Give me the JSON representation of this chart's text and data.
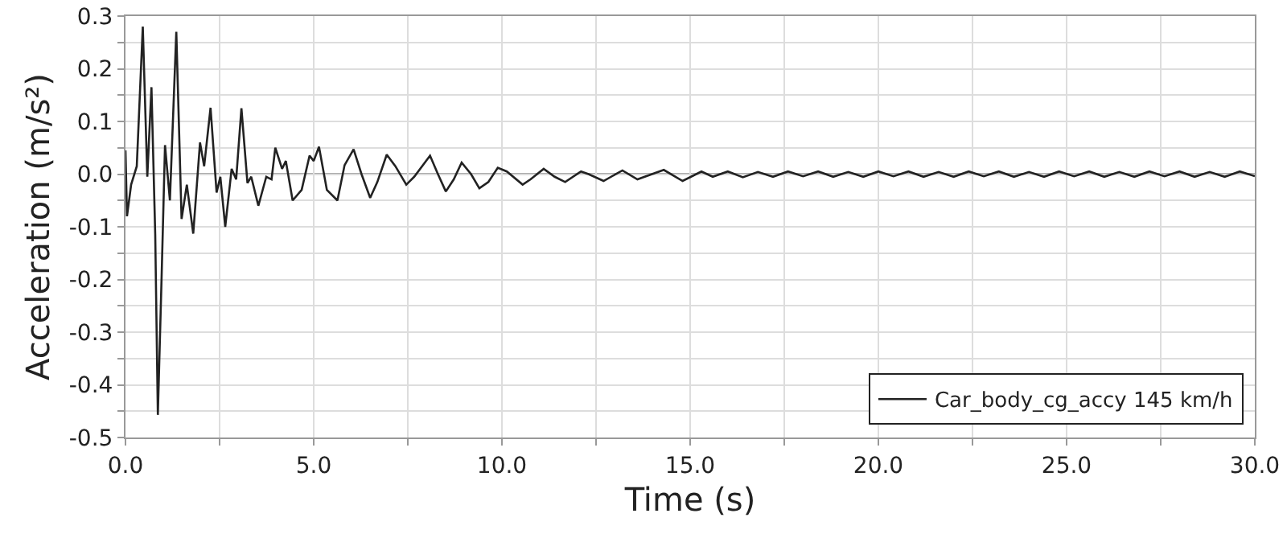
{
  "chart_data": {
    "type": "line",
    "xlabel": "Time (s)",
    "ylabel": "Acceleration (m/s²)",
    "xlim": [
      0,
      30
    ],
    "ylim": [
      -0.5,
      0.3
    ],
    "xticks": [
      {
        "value": 0,
        "label": "0.0"
      },
      {
        "value": 2.5,
        "label": null
      },
      {
        "value": 5,
        "label": "5.0"
      },
      {
        "value": 7.5,
        "label": null
      },
      {
        "value": 10,
        "label": "10.0"
      },
      {
        "value": 12.5,
        "label": null
      },
      {
        "value": 15,
        "label": "15.0"
      },
      {
        "value": 17.5,
        "label": null
      },
      {
        "value": 20,
        "label": "20.0"
      },
      {
        "value": 22.5,
        "label": null
      },
      {
        "value": 25,
        "label": "25.0"
      },
      {
        "value": 27.5,
        "label": null
      },
      {
        "value": 30,
        "label": "30.0"
      }
    ],
    "yticks": [
      {
        "value": -0.5,
        "label": "-0.5"
      },
      {
        "value": -0.45,
        "label": null
      },
      {
        "value": -0.4,
        "label": "-0.4"
      },
      {
        "value": -0.35,
        "label": null
      },
      {
        "value": -0.3,
        "label": "-0.3"
      },
      {
        "value": -0.25,
        "label": null
      },
      {
        "value": -0.2,
        "label": "-0.2"
      },
      {
        "value": -0.15,
        "label": null
      },
      {
        "value": -0.1,
        "label": "-0.1"
      },
      {
        "value": -0.05,
        "label": null
      },
      {
        "value": 0,
        "label": "0.0"
      },
      {
        "value": 0.05,
        "label": null
      },
      {
        "value": 0.1,
        "label": "0.1"
      },
      {
        "value": 0.15,
        "label": null
      },
      {
        "value": 0.2,
        "label": "0.2"
      },
      {
        "value": 0.25,
        "label": null
      },
      {
        "value": 0.3,
        "label": "0.3"
      }
    ],
    "grid": true,
    "legend": "bottom right",
    "marker": "none",
    "line_style": "solid",
    "ref_lines": [
      {
        "axis": "y",
        "value": 0,
        "color": "#555555"
      }
    ],
    "series": [
      {
        "name": "Car_body_cg_accy 145 km/h",
        "color": "#222222",
        "x": [
          0,
          0.04,
          0.15,
          0.3,
          0.46,
          0.58,
          0.69,
          0.79,
          0.86,
          0.96,
          1.05,
          1.18,
          1.35,
          1.49,
          1.63,
          1.8,
          1.98,
          2.09,
          2.26,
          2.42,
          2.52,
          2.65,
          2.82,
          2.94,
          3.08,
          3.24,
          3.34,
          3.53,
          3.74,
          3.88,
          3.98,
          4.16,
          4.26,
          4.44,
          4.68,
          4.89,
          5.0,
          5.14,
          5.35,
          5.63,
          5.82,
          6.06,
          6.27,
          6.5,
          6.69,
          6.94,
          7.17,
          7.46,
          7.67,
          8.09,
          8.3,
          8.51,
          8.72,
          8.93,
          9.18,
          9.4,
          9.64,
          9.89,
          10.13,
          10.55,
          10.76,
          11.11,
          11.4,
          11.68,
          12.1,
          12.3,
          12.7,
          13.2,
          13.6,
          14.3,
          14.8,
          15.3,
          15.6,
          16.0,
          16.4,
          16.8,
          17.2,
          17.6,
          18.0,
          18.4,
          18.8,
          19.2,
          19.6,
          20.0,
          20.4,
          20.8,
          21.2,
          21.6,
          22.0,
          22.4,
          22.8,
          23.2,
          23.6,
          24.0,
          24.4,
          24.8,
          25.2,
          25.6,
          26.0,
          26.4,
          26.8,
          27.2,
          27.6,
          28.0,
          28.4,
          28.8,
          29.2,
          29.6,
          30.0
        ],
        "values": [
          0.045,
          -0.08,
          -0.02,
          0.015,
          0.28,
          -0.005,
          0.165,
          -0.115,
          -0.457,
          -0.195,
          0.055,
          -0.05,
          0.27,
          -0.085,
          -0.02,
          -0.113,
          0.06,
          0.015,
          0.126,
          -0.035,
          -0.005,
          -0.1,
          0.01,
          -0.01,
          0.125,
          -0.017,
          -0.005,
          -0.06,
          -0.005,
          -0.01,
          0.05,
          0.01,
          0.025,
          -0.05,
          -0.03,
          0.035,
          0.025,
          0.052,
          -0.03,
          -0.05,
          0.017,
          0.047,
          0,
          -0.045,
          -0.015,
          0.037,
          0.015,
          -0.02,
          -0.005,
          0.035,
          0,
          -0.033,
          -0.01,
          0.022,
          0,
          -0.027,
          -0.015,
          0.012,
          0.005,
          -0.02,
          -0.01,
          0.01,
          -0.005,
          -0.015,
          0.005,
          0,
          -0.013,
          0.007,
          -0.01,
          0.008,
          -0.013,
          0.005,
          -0.005,
          0.005,
          -0.006,
          0.004,
          -0.005,
          0.005,
          -0.004,
          0.005,
          -0.005,
          0.004,
          -0.005,
          0.005,
          -0.004,
          0.005,
          -0.005,
          0.004,
          -0.005,
          0.005,
          -0.004,
          0.005,
          -0.005,
          0.004,
          -0.005,
          0.005,
          -0.004,
          0.005,
          -0.005,
          0.004,
          -0.005,
          0.005,
          -0.004,
          0.005,
          -0.005,
          0.004,
          -0.005,
          0.005,
          -0.004
        ]
      }
    ]
  }
}
